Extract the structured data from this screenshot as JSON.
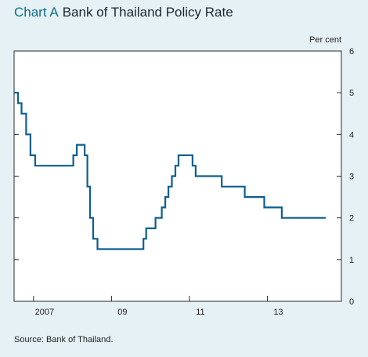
{
  "chart_data": {
    "type": "line",
    "title_label": "Chart A",
    "title": "Bank of Thailand Policy Rate",
    "unit_label": "Per cent",
    "source": "Source:  Bank of Thailand.",
    "x_tick_labels": [
      "2007",
      "09",
      "11",
      "13"
    ],
    "x_tick_years": [
      2007,
      2009,
      2011,
      2013
    ],
    "xlim": [
      2006.5,
      2014.9
    ],
    "ylim": [
      0,
      6
    ],
    "y_ticks": [
      0,
      1,
      2,
      3,
      4,
      5,
      6
    ],
    "y_tick_labels": [
      "0",
      "1",
      "2",
      "3",
      "4",
      "5",
      "6"
    ],
    "line_color": "#0b5f8f",
    "series": [
      {
        "x": [
          2006.5,
          2006.6,
          2006.6,
          2006.69,
          2006.69,
          2006.81,
          2006.81,
          2006.92,
          2006.92,
          2007.04,
          2007.04,
          2007.13,
          2007.13,
          2008.02,
          2008.02,
          2008.11,
          2008.11,
          2008.31,
          2008.31,
          2008.38,
          2008.38,
          2008.45,
          2008.45,
          2008.53,
          2008.53,
          2008.64,
          2008.64,
          2008.75,
          2008.75,
          2009.82,
          2009.82,
          2009.89,
          2009.89,
          2010.13,
          2010.13,
          2010.29,
          2010.29,
          2010.38,
          2010.38,
          2010.46,
          2010.46,
          2010.55,
          2010.55,
          2010.64,
          2010.64,
          2010.72,
          2010.72,
          2010.8,
          2010.8,
          2011.08,
          2011.08,
          2011.16,
          2011.16,
          2011.83,
          2011.83,
          2012.42,
          2012.42,
          2012.92,
          2012.92,
          2013.37,
          2013.37,
          2013.72,
          2013.72,
          2014.5
        ],
        "y": [
          5.0,
          5.0,
          4.75,
          4.75,
          4.5,
          4.5,
          4.0,
          4.0,
          3.5,
          3.5,
          3.25,
          3.25,
          3.25,
          3.25,
          3.5,
          3.5,
          3.75,
          3.75,
          3.5,
          3.5,
          2.75,
          2.75,
          2.0,
          2.0,
          1.5,
          1.5,
          1.25,
          1.25,
          1.25,
          1.25,
          1.5,
          1.5,
          1.75,
          1.75,
          2.0,
          2.0,
          2.25,
          2.25,
          2.5,
          2.5,
          2.75,
          2.75,
          3.0,
          3.0,
          3.25,
          3.25,
          3.5,
          3.5,
          3.5,
          3.5,
          3.25,
          3.25,
          3.0,
          3.0,
          2.75,
          2.75,
          2.5,
          2.5,
          2.25,
          2.25,
          2.0,
          2.0,
          2.0,
          2.0
        ]
      }
    ],
    "grid": false
  }
}
